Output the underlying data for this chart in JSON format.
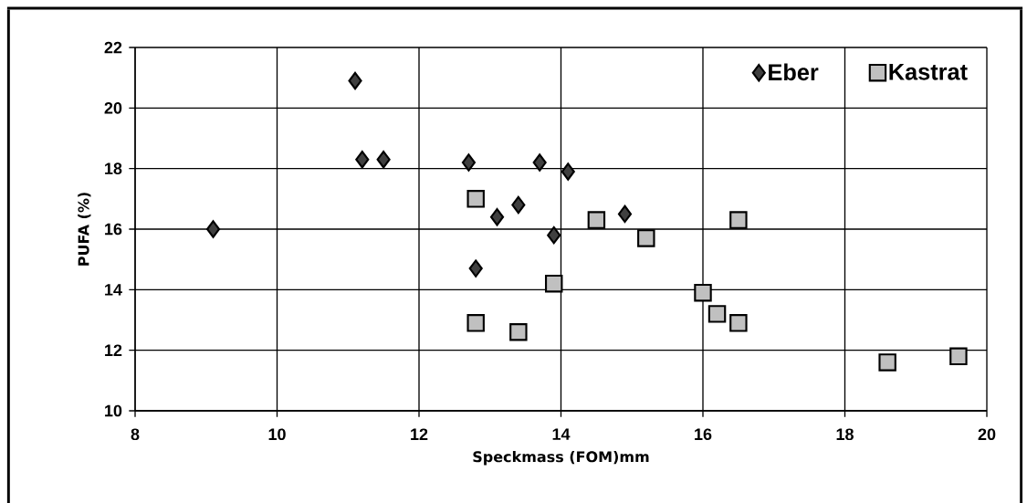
{
  "chart_data": {
    "type": "scatter",
    "xlabel": "Speckmass (FOM)mm",
    "ylabel": "PUFA (%)",
    "xlim": [
      8,
      20
    ],
    "xticks": [
      8,
      10,
      12,
      14,
      16,
      18,
      20
    ],
    "ylim": [
      10,
      22
    ],
    "yticks": [
      10,
      12,
      14,
      16,
      18,
      20,
      22
    ],
    "grid": true,
    "legend": "top right",
    "series": [
      {
        "name": "Eber",
        "color": "#404040",
        "marker": "diamond",
        "x": [
          9.1,
          11.1,
          11.2,
          11.5,
          12.7,
          12.8,
          13.1,
          13.4,
          13.7,
          13.9,
          14.1,
          14.9
        ],
        "values": [
          16.0,
          20.9,
          18.3,
          18.3,
          18.2,
          14.7,
          16.4,
          16.8,
          18.2,
          15.8,
          17.9,
          16.5
        ]
      },
      {
        "name": "Kastrat",
        "color": "#c0c0c0",
        "marker": "square",
        "x": [
          12.8,
          12.8,
          13.4,
          13.9,
          14.5,
          15.2,
          16.0,
          16.2,
          16.5,
          16.5,
          18.6,
          19.6
        ],
        "values": [
          17.0,
          12.9,
          12.6,
          14.2,
          16.3,
          15.7,
          13.9,
          13.2,
          12.9,
          16.3,
          11.6,
          11.8
        ]
      }
    ]
  }
}
